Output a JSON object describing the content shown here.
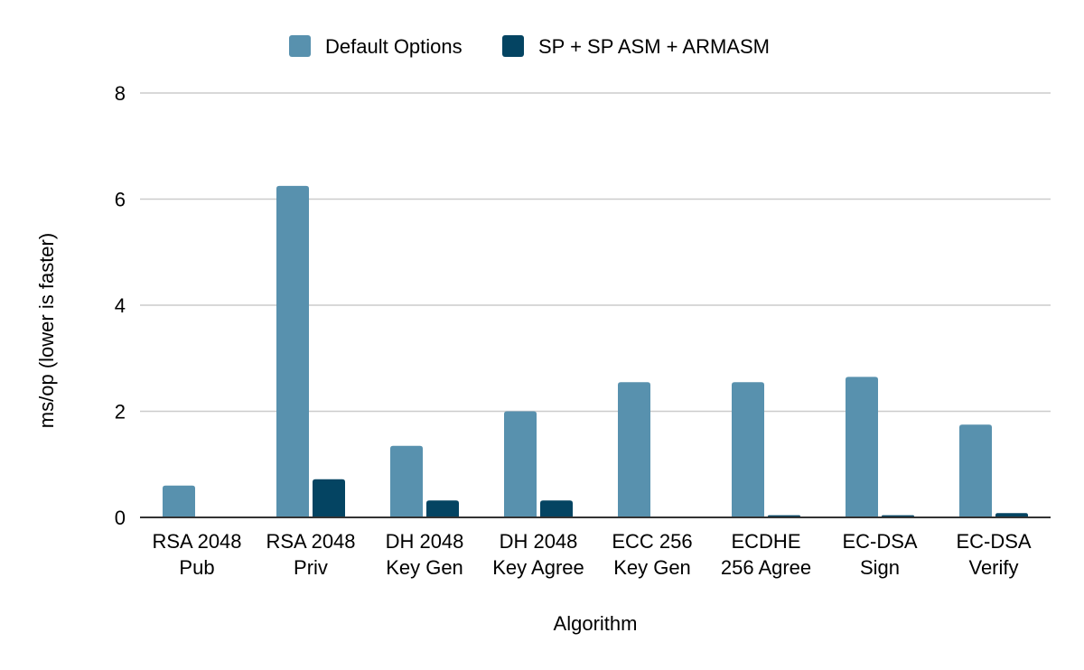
{
  "chart_data": {
    "type": "bar",
    "title": "",
    "xlabel": "Algorithm",
    "ylabel": "ms/op (lower is faster)",
    "ylim": [
      0,
      8
    ],
    "yticks": [
      0,
      2,
      4,
      6,
      8
    ],
    "grid": true,
    "legend_position": "top",
    "categories": [
      [
        "RSA 2048",
        "Pub"
      ],
      [
        "RSA 2048",
        "Priv"
      ],
      [
        "DH 2048",
        "Key Gen"
      ],
      [
        "DH 2048",
        "Key Agree"
      ],
      [
        "ECC 256",
        "Key Gen"
      ],
      [
        "ECDHE",
        "256 Agree"
      ],
      [
        "EC-DSA",
        "Sign"
      ],
      [
        "EC-DSA",
        "Verify"
      ]
    ],
    "series": [
      {
        "name": "Default Options",
        "color": "#5891ae",
        "values": [
          0.6,
          6.25,
          1.35,
          2.0,
          2.55,
          2.55,
          2.65,
          1.75
        ]
      },
      {
        "name": "SP + SP ASM + ARMASM",
        "color": "#044462",
        "values": [
          0.0,
          0.72,
          0.32,
          0.32,
          0.0,
          0.04,
          0.04,
          0.08
        ]
      }
    ]
  }
}
